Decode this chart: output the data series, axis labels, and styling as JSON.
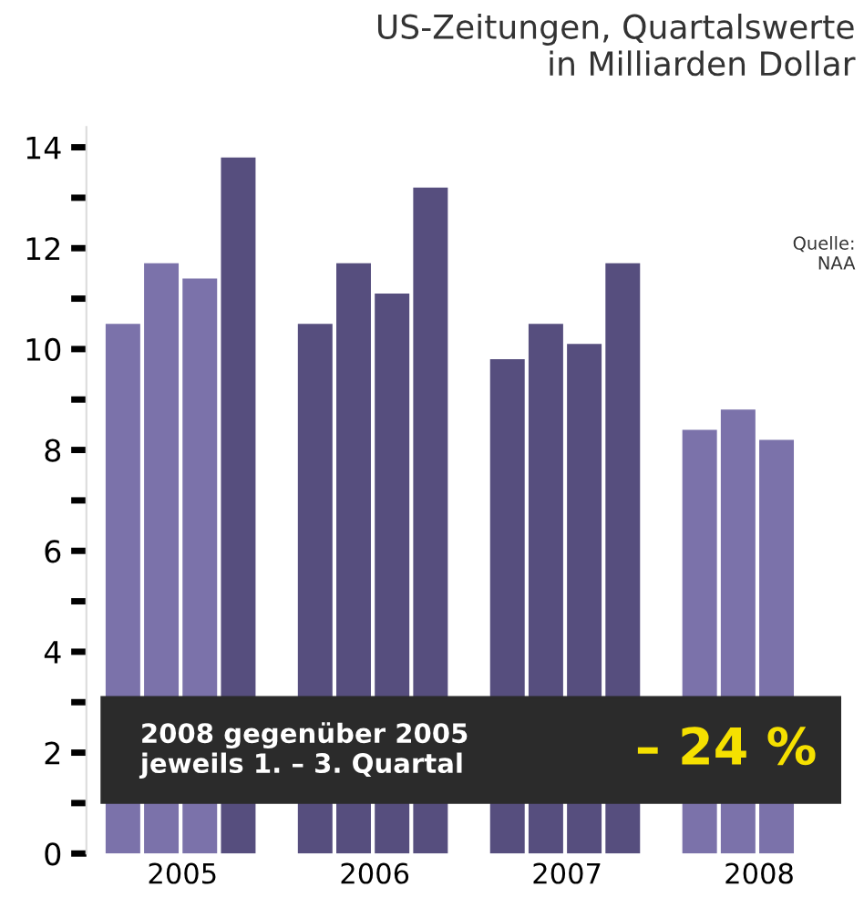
{
  "chart_data": {
    "type": "bar",
    "title": "US-Zeitungen, Quartalswerte\nin Milliarden Dollar",
    "categories": [
      "2005",
      "2006",
      "2007",
      "2008"
    ],
    "series": [
      {
        "colors": [
          "#7b72aa",
          "#564e7e",
          "#564e7e",
          "#7b72aa"
        ],
        "values": [
          10.5,
          10.5,
          9.8,
          8.4
        ]
      },
      {
        "colors": [
          "#7b72aa",
          "#564e7e",
          "#564e7e",
          "#7b72aa"
        ],
        "values": [
          11.7,
          11.7,
          10.5,
          8.8
        ]
      },
      {
        "colors": [
          "#7b72aa",
          "#564e7e",
          "#564e7e",
          "#7b72aa"
        ],
        "values": [
          11.4,
          11.1,
          10.1,
          8.2
        ]
      },
      {
        "colors": [
          "#564e7e",
          "#564e7e",
          "#564e7e",
          null
        ],
        "values": [
          13.8,
          13.2,
          11.7,
          null
        ]
      }
    ],
    "ylim": [
      0,
      14.4
    ],
    "yticks": [
      0,
      {
        "value": 1,
        "label": null
      },
      2,
      {
        "value": 3,
        "label": null
      },
      4,
      {
        "value": 5,
        "label": null
      },
      6,
      {
        "value": 7,
        "label": null
      },
      8,
      {
        "value": 9,
        "label": null
      },
      10,
      {
        "value": 11,
        "label": null
      },
      12,
      {
        "value": 13,
        "label": null
      },
      14
    ],
    "annotations": [
      "Quelle:\nNAA",
      "2008 gegenüber 2005\njeweils 1. – 3. Quartal",
      "– 24 %"
    ],
    "grid": false,
    "legend": false
  }
}
